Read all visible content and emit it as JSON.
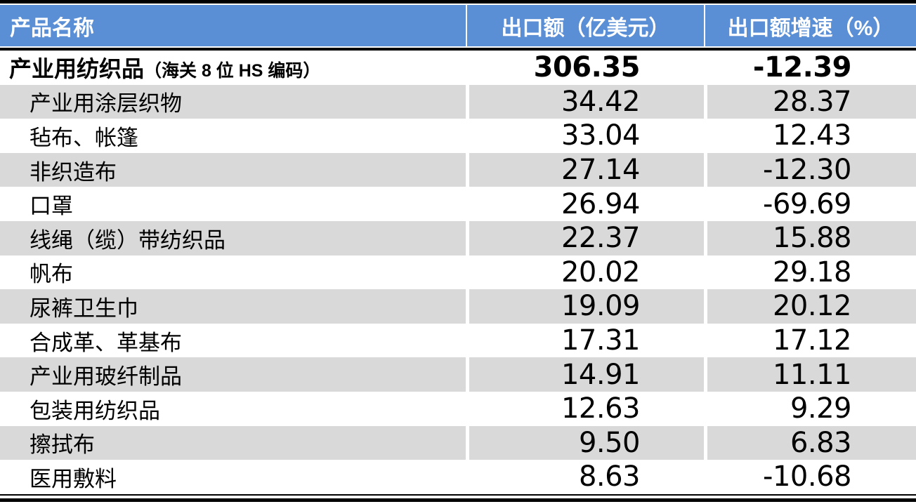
{
  "table": {
    "columns": [
      "产品名称",
      "出口额（亿美元）",
      "出口额增速（%）"
    ],
    "total_row": {
      "name": "产业用纺织品",
      "note": "（海关 8 位 HS 编码）",
      "export_value": "306.35",
      "growth": "-12.39"
    },
    "rows": [
      {
        "name": "产业用涂层织物",
        "export_value": "34.42",
        "growth": "28.37"
      },
      {
        "name": "毡布、帐篷",
        "export_value": "33.04",
        "growth": "12.43"
      },
      {
        "name": "非织造布",
        "export_value": "27.14",
        "growth": "-12.30"
      },
      {
        "name": "口罩",
        "export_value": "26.94",
        "growth": "-69.69"
      },
      {
        "name": "线绳（缆）带纺织品",
        "export_value": "22.37",
        "growth": "15.88"
      },
      {
        "name": "帆布",
        "export_value": "20.02",
        "growth": "29.18"
      },
      {
        "name": "尿裤卫生巾",
        "export_value": "19.09",
        "growth": "20.12"
      },
      {
        "name": "合成革、革基布",
        "export_value": "17.31",
        "growth": "17.12"
      },
      {
        "name": "产业用玻纤制品",
        "export_value": "14.91",
        "growth": "11.11"
      },
      {
        "name": "包装用纺织品",
        "export_value": "12.63",
        "growth": "9.29"
      },
      {
        "name": "擦拭布",
        "export_value": "9.50",
        "growth": "6.83"
      },
      {
        "name": "医用敷料",
        "export_value": "8.63",
        "growth": "-10.68"
      }
    ]
  },
  "colors": {
    "header_bg": "#5A8ED5",
    "header_text": "#FFFFFF",
    "alt_row_bg": "#D9D9D9",
    "row_bg": "#FFFFFF",
    "border": "#000000",
    "text": "#000000"
  }
}
